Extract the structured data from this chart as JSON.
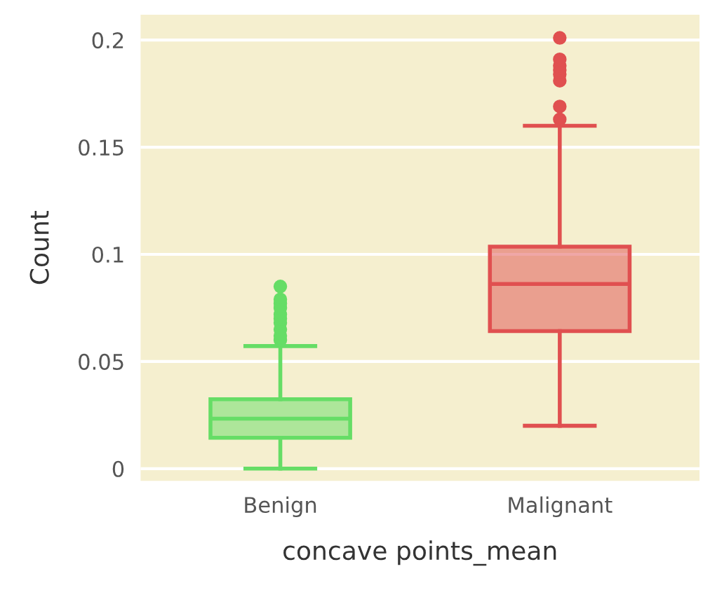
{
  "chart_data": {
    "type": "box",
    "xlabel": "concave points_mean",
    "ylabel": "Count",
    "categories": [
      "Benign",
      "Malignant"
    ],
    "series": [
      {
        "color": "#66dd66",
        "boxes": [
          {
            "low": 0,
            "q1": 0.0144,
            "median": 0.0233,
            "q3": 0.0324,
            "high": 0.0572,
            "outliers": [
              0.06,
              0.062,
              0.065,
              0.068,
              0.07,
              0.072,
              0.075,
              0.077,
              0.079,
              0.085
            ]
          },
          null
        ]
      },
      {
        "color": "#e05050",
        "boxes": [
          null,
          {
            "low": 0.02,
            "q1": 0.0642,
            "median": 0.0862,
            "q3": 0.1036,
            "high": 0.16,
            "outliers": [
              0.163,
              0.169,
              0.181,
              0.184,
              0.186,
              0.188,
              0.191,
              0.201
            ]
          }
        ]
      }
    ],
    "ylim": [
      -0.0057,
      0.2118
    ],
    "yticks": [
      0,
      0.05,
      0.1,
      0.15,
      0.2
    ],
    "grid": "y",
    "legend": false
  }
}
